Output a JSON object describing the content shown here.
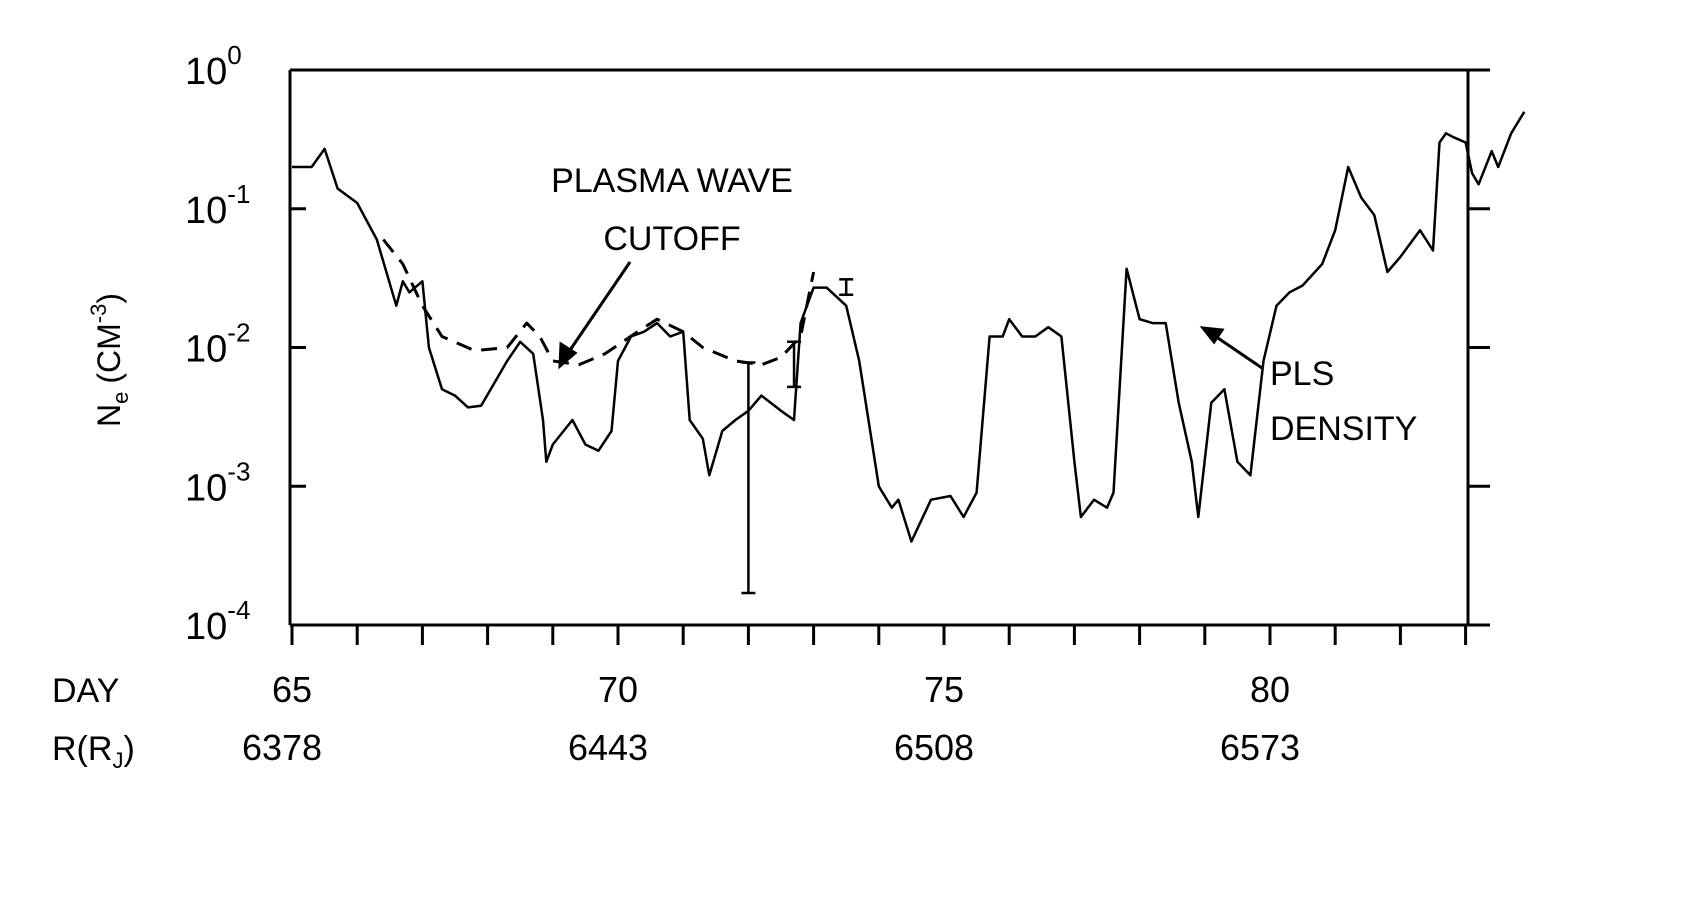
{
  "chart_data": {
    "type": "line",
    "ylabel": "N",
    "ylabel_sub": "e",
    "ylabel_unit": "(CM",
    "ylabel_exp": "-3",
    "ylabel_close": ")",
    "y_scale": "log",
    "ylim": [
      0.0001,
      1
    ],
    "y_ticks": [
      {
        "base": "10",
        "exp": "0",
        "value": 1
      },
      {
        "base": "10",
        "exp": "-1",
        "value": 0.1
      },
      {
        "base": "10",
        "exp": "-2",
        "value": 0.01
      },
      {
        "base": "10",
        "exp": "-3",
        "value": 0.001
      },
      {
        "base": "10",
        "exp": "-4",
        "value": 0.0001
      }
    ],
    "xlim": [
      65,
      83
    ],
    "x_row_label": "DAY",
    "x_ticks": [
      {
        "label": "65",
        "value": 65
      },
      {
        "label": "70",
        "value": 70
      },
      {
        "label": "75",
        "value": 75
      },
      {
        "label": "80",
        "value": 80
      }
    ],
    "r_row_label": "R(R",
    "r_row_sub": "J",
    "r_row_close": ")",
    "r_ticks": [
      {
        "label": "6378",
        "value": 65
      },
      {
        "label": "6443",
        "value": 70
      },
      {
        "label": "6508",
        "value": 75
      },
      {
        "label": "6573",
        "value": 80
      }
    ],
    "annotations": {
      "cutoff_line1": "PLASMA WAVE",
      "cutoff_line2": "CUTOFF",
      "density_line1": "PLS",
      "density_line2": "DENSITY"
    },
    "series": [
      {
        "name": "PLS DENSITY",
        "style": "solid",
        "points": [
          [
            65.0,
            0.2
          ],
          [
            65.3,
            0.2
          ],
          [
            65.5,
            0.27
          ],
          [
            65.7,
            0.14
          ],
          [
            66.0,
            0.11
          ],
          [
            66.3,
            0.06
          ],
          [
            66.6,
            0.02
          ],
          [
            66.7,
            0.03
          ],
          [
            66.8,
            0.025
          ],
          [
            67.0,
            0.03
          ],
          [
            67.1,
            0.01
          ],
          [
            67.3,
            0.005
          ],
          [
            67.5,
            0.0045
          ],
          [
            67.7,
            0.0037
          ],
          [
            67.9,
            0.0038
          ],
          [
            68.3,
            0.008
          ],
          [
            68.5,
            0.011
          ],
          [
            68.7,
            0.009
          ],
          [
            68.85,
            0.003
          ],
          [
            68.9,
            0.0015
          ],
          [
            69.0,
            0.002
          ],
          [
            69.3,
            0.003
          ],
          [
            69.5,
            0.002
          ],
          [
            69.7,
            0.0018
          ],
          [
            69.9,
            0.0025
          ],
          [
            70.0,
            0.008
          ],
          [
            70.2,
            0.012
          ],
          [
            70.4,
            0.013
          ],
          [
            70.6,
            0.015
          ],
          [
            70.8,
            0.012
          ],
          [
            71.0,
            0.013
          ],
          [
            71.1,
            0.003
          ],
          [
            71.3,
            0.0022
          ],
          [
            71.4,
            0.0012
          ],
          [
            71.6,
            0.0025
          ],
          [
            71.8,
            0.003
          ],
          [
            72.0,
            0.0035
          ],
          [
            72.2,
            0.0045
          ],
          [
            72.5,
            0.0035
          ],
          [
            72.7,
            0.003
          ],
          [
            72.8,
            0.015
          ],
          [
            73.0,
            0.027
          ],
          [
            73.2,
            0.027
          ],
          [
            73.5,
            0.02
          ],
          [
            73.7,
            0.008
          ],
          [
            73.9,
            0.002
          ],
          [
            74.0,
            0.001
          ],
          [
            74.2,
            0.0007
          ],
          [
            74.3,
            0.0008
          ],
          [
            74.5,
            0.0004
          ],
          [
            74.8,
            0.0008
          ],
          [
            75.1,
            0.00085
          ],
          [
            75.3,
            0.0006
          ],
          [
            75.5,
            0.0009
          ],
          [
            75.7,
            0.012
          ],
          [
            75.9,
            0.012
          ],
          [
            76.0,
            0.016
          ],
          [
            76.2,
            0.012
          ],
          [
            76.4,
            0.012
          ],
          [
            76.6,
            0.014
          ],
          [
            76.8,
            0.012
          ],
          [
            77.0,
            0.0015
          ],
          [
            77.1,
            0.0006
          ],
          [
            77.3,
            0.0008
          ],
          [
            77.5,
            0.0007
          ],
          [
            77.6,
            0.0009
          ],
          [
            77.8,
            0.037
          ],
          [
            78.0,
            0.016
          ],
          [
            78.2,
            0.015
          ],
          [
            78.4,
            0.015
          ],
          [
            78.6,
            0.004
          ],
          [
            78.8,
            0.0015
          ],
          [
            78.9,
            0.0006
          ],
          [
            79.1,
            0.004
          ],
          [
            79.3,
            0.005
          ],
          [
            79.5,
            0.0015
          ],
          [
            79.7,
            0.0012
          ],
          [
            79.9,
            0.008
          ],
          [
            80.1,
            0.02
          ],
          [
            80.3,
            0.025
          ],
          [
            80.5,
            0.028
          ],
          [
            80.8,
            0.04
          ],
          [
            81.0,
            0.07
          ],
          [
            81.2,
            0.2
          ],
          [
            81.4,
            0.12
          ],
          [
            81.6,
            0.09
          ],
          [
            81.8,
            0.035
          ],
          [
            82.0,
            0.045
          ],
          [
            82.3,
            0.07
          ],
          [
            82.5,
            0.05
          ],
          [
            82.6,
            0.3
          ],
          [
            82.7,
            0.35
          ],
          [
            82.8,
            0.33
          ],
          [
            83.0,
            0.3
          ],
          [
            83.1,
            0.18
          ],
          [
            83.2,
            0.15
          ],
          [
            83.4,
            0.26
          ],
          [
            83.5,
            0.2
          ],
          [
            83.7,
            0.35
          ],
          [
            83.9,
            0.5
          ]
        ]
      },
      {
        "name": "PLASMA WAVE CUTOFF",
        "style": "dashed",
        "points": [
          [
            66.4,
            0.06
          ],
          [
            66.7,
            0.04
          ],
          [
            67.0,
            0.02
          ],
          [
            67.3,
            0.012
          ],
          [
            67.8,
            0.0095
          ],
          [
            68.3,
            0.01
          ],
          [
            68.6,
            0.015
          ],
          [
            68.8,
            0.012
          ],
          [
            69.0,
            0.008
          ],
          [
            69.4,
            0.0075
          ],
          [
            69.8,
            0.009
          ],
          [
            70.3,
            0.013
          ],
          [
            70.6,
            0.016
          ],
          [
            71.0,
            0.013
          ],
          [
            71.3,
            0.01
          ],
          [
            71.8,
            0.008
          ],
          [
            72.2,
            0.0075
          ],
          [
            72.5,
            0.0085
          ],
          [
            72.8,
            0.012
          ],
          [
            73.0,
            0.035
          ]
        ]
      }
    ],
    "error_bars": [
      {
        "x": 72.0,
        "low": 0.00017,
        "high": 0.0078
      },
      {
        "x": 72.7,
        "low": 0.0052,
        "high": 0.011
      },
      {
        "x": 73.5,
        "low": 0.024,
        "high": 0.031
      }
    ]
  }
}
